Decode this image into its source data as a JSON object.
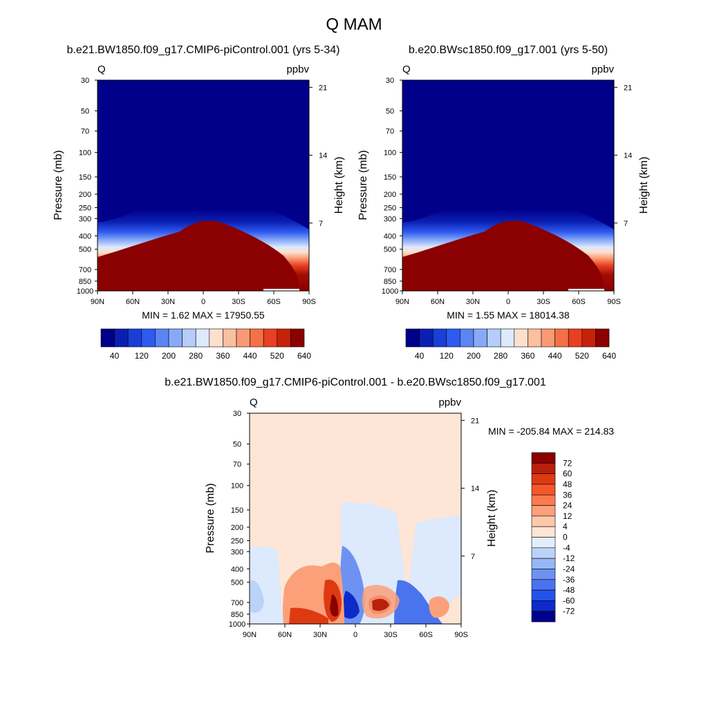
{
  "title": "Q MAM",
  "axis_labels": {
    "pressure": "Pressure (mb)",
    "height": "Height (km)"
  },
  "pressure_ticks": [
    "30",
    "50",
    "70",
    "100",
    "150",
    "200",
    "250",
    "300",
    "400",
    "500",
    "700",
    "850",
    "1000"
  ],
  "height_ticks": [
    "21",
    "14",
    "7"
  ],
  "lat_ticks": [
    "90N",
    "60N",
    "30N",
    "0",
    "30S",
    "60S",
    "90S"
  ],
  "panels": [
    {
      "subtitle": "b.e21.BW1850.f09_g17.CMIP6-piControl.001 (yrs 5-34)",
      "var_label": "Q",
      "units": "ppbv",
      "stats": "MIN =   1.62  MAX = 17950.55"
    },
    {
      "subtitle": "b.e20.BWsc1850.f09_g17.001 (yrs 5-50)",
      "var_label": "Q",
      "units": "ppbv",
      "stats": "MIN =   1.55  MAX = 18014.38"
    },
    {
      "subtitle": "b.e21.BW1850.f09_g17.CMIP6-piControl.001 - b.e20.BWsc1850.f09_g17.001",
      "var_label": "Q",
      "units": "ppbv",
      "stats": "MIN = -205.84  MAX = 214.83"
    }
  ],
  "colorbar_abs": {
    "labels": [
      "40",
      "120",
      "200",
      "280",
      "360",
      "440",
      "520",
      "640"
    ],
    "colors": [
      "#00008b",
      "#0a1fb2",
      "#1a3fd6",
      "#2e5af0",
      "#5b84f5",
      "#88a9f7",
      "#b5cdfa",
      "#dde9fc",
      "#fde0cc",
      "#fcbfa0",
      "#fa9a74",
      "#f57047",
      "#e84020",
      "#c7210b",
      "#8b0000"
    ]
  },
  "colorbar_diff": {
    "labels": [
      "72",
      "60",
      "48",
      "36",
      "24",
      "12",
      "4",
      "0",
      "-4",
      "-12",
      "-24",
      "-36",
      "-48",
      "-60",
      "-72"
    ],
    "colors": [
      "#8b0000",
      "#b8200b",
      "#de3a12",
      "#f5562a",
      "#fa7a4e",
      "#fca07a",
      "#fdc8aa",
      "#fde6d6",
      "#e2eefb",
      "#bcd3f8",
      "#97b6f5",
      "#6d92f2",
      "#4a73ef",
      "#2452ec",
      "#0c2bc8",
      "#00008b"
    ]
  },
  "chart_data": [
    {
      "type": "heatmap",
      "title": "b.e21.BW1850.f09_g17.CMIP6-piControl.001 (yrs 5-34)",
      "xlabel": "",
      "ylabel": "Pressure (mb)",
      "y2label": "Height (km)",
      "x_ticks": [
        "90N",
        "60N",
        "30N",
        "0",
        "30S",
        "60S",
        "90S"
      ],
      "x_range": [
        90,
        -90
      ],
      "y_range_mb": [
        30,
        1000
      ],
      "y_scale": "log",
      "levels": [
        40,
        80,
        120,
        160,
        200,
        240,
        280,
        320,
        360,
        400,
        440,
        480,
        520,
        580,
        640
      ],
      "min": 1.62,
      "max": 17950.55,
      "feature_top_of_moist_layer_mb": [
        {
          "lat": 90,
          "p": 340
        },
        {
          "lat": 60,
          "p": 300
        },
        {
          "lat": 30,
          "p": 240
        },
        {
          "lat": 0,
          "p": 195
        },
        {
          "lat": -30,
          "p": 220
        },
        {
          "lat": -60,
          "p": 280
        },
        {
          "lat": -90,
          "p": 340
        }
      ]
    },
    {
      "type": "heatmap",
      "title": "b.e20.BWsc1850.f09_g17.001 (yrs 5-50)",
      "xlabel": "",
      "ylabel": "Pressure (mb)",
      "y2label": "Height (km)",
      "x_ticks": [
        "90N",
        "60N",
        "30N",
        "0",
        "30S",
        "60S",
        "90S"
      ],
      "x_range": [
        90,
        -90
      ],
      "y_range_mb": [
        30,
        1000
      ],
      "y_scale": "log",
      "levels": [
        40,
        80,
        120,
        160,
        200,
        240,
        280,
        320,
        360,
        400,
        440,
        480,
        520,
        580,
        640
      ],
      "min": 1.55,
      "max": 18014.38
    },
    {
      "type": "heatmap",
      "title": "b.e21.BW1850.f09_g17.CMIP6-piControl.001 - b.e20.BWsc1850.f09_g17.001",
      "xlabel": "",
      "ylabel": "Pressure (mb)",
      "y2label": "Height (km)",
      "x_ticks": [
        "90N",
        "60N",
        "30N",
        "0",
        "30S",
        "60S",
        "90S"
      ],
      "x_range": [
        90,
        -90
      ],
      "y_range_mb": [
        30,
        1000
      ],
      "y_scale": "log",
      "levels": [
        -72,
        -60,
        -48,
        -36,
        -24,
        -12,
        -4,
        0,
        4,
        12,
        24,
        36,
        48,
        60,
        72
      ],
      "min": -205.84,
      "max": 214.83
    }
  ]
}
